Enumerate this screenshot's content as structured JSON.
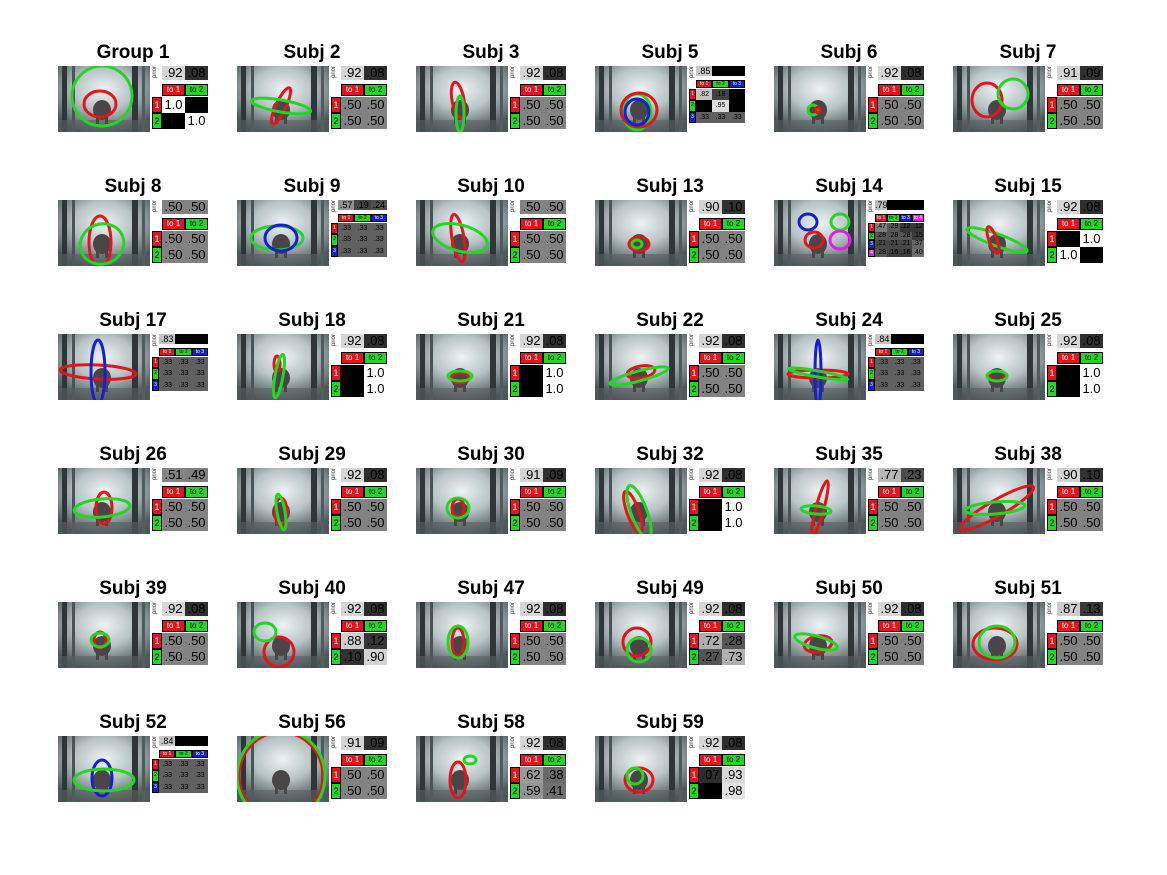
{
  "colors": {
    "red": "#e4141b",
    "green": "#22d722",
    "blue": "#1420d4",
    "magenta": "#e020e0"
  },
  "prior_label": "prior",
  "panels": [
    {
      "title": "Group 1",
      "prior": [
        ".92",
        ".08"
      ],
      "hdr": [
        "to 1",
        "to 2"
      ],
      "rows": [
        [
          "1.0",
          ""
        ],
        [
          "",
          "1.0"
        ]
      ]
    },
    {
      "title": "Subj 2",
      "prior": [
        ".92",
        ".08"
      ],
      "hdr": [
        "to 1",
        "to 2"
      ],
      "rows": [
        [
          ".50",
          ".50"
        ],
        [
          ".50",
          ".50"
        ]
      ]
    },
    {
      "title": "Subj 3",
      "prior": [
        ".92",
        ".08"
      ],
      "hdr": [
        "to 1",
        "to 2"
      ],
      "rows": [
        [
          ".50",
          ".50"
        ],
        [
          ".50",
          ".50"
        ]
      ]
    },
    {
      "title": "Subj 5",
      "prior": [
        ".85",
        "",
        ""
      ],
      "hdr": [
        "to 1",
        "to 2",
        "to 3"
      ],
      "rows": [
        [
          ".82",
          ".18",
          ""
        ],
        [
          "",
          ".95",
          ""
        ],
        [
          ".33",
          ".33",
          ".33"
        ]
      ]
    },
    {
      "title": "Subj 6",
      "prior": [
        ".92",
        ".08"
      ],
      "hdr": [
        "to 1",
        "to 2"
      ],
      "rows": [
        [
          ".50",
          ".50"
        ],
        [
          ".50",
          ".50"
        ]
      ]
    },
    {
      "title": "Subj 7",
      "prior": [
        ".91",
        ".09"
      ],
      "hdr": [
        "to 1",
        "to 2"
      ],
      "rows": [
        [
          ".50",
          ".50"
        ],
        [
          ".50",
          ".50"
        ]
      ]
    },
    {
      "title": "Subj 8",
      "prior": [
        ".50",
        ".50"
      ],
      "hdr": [
        "to 1",
        "to 2"
      ],
      "rows": [
        [
          ".50",
          ".50"
        ],
        [
          ".50",
          ".50"
        ]
      ]
    },
    {
      "title": "Subj 9",
      "prior": [
        ".57",
        ".19",
        ".24"
      ],
      "hdr": [
        "to 1",
        "to 2",
        "to 3"
      ],
      "rows": [
        [
          ".33",
          ".33",
          ".33"
        ],
        [
          ".33",
          ".33",
          ".33"
        ],
        [
          ".33",
          ".33",
          ".33"
        ]
      ]
    },
    {
      "title": "Subj 10",
      "prior": [
        ".50",
        ".50"
      ],
      "hdr": [
        "to 1",
        "to 2"
      ],
      "rows": [
        [
          ".50",
          ".50"
        ],
        [
          ".50",
          ".50"
        ]
      ]
    },
    {
      "title": "Subj 13",
      "prior": [
        ".90",
        ".10"
      ],
      "hdr": [
        "to 1",
        "to 2"
      ],
      "rows": [
        [
          ".50",
          ".50"
        ],
        [
          ".50",
          ".50"
        ]
      ]
    },
    {
      "title": "Subj 14",
      "prior": [
        ".79",
        "",
        "",
        ""
      ],
      "hdr": [
        "to 1",
        "to 2",
        "to 3",
        "to 4"
      ],
      "rows": [
        [
          ".47",
          ".29",
          ".12",
          ".12"
        ],
        [
          ".28",
          ".28",
          ".28",
          ".15"
        ],
        [
          ".21",
          ".21",
          ".21",
          ".37"
        ],
        [
          ".28",
          ".16",
          ".16",
          ".40"
        ]
      ]
    },
    {
      "title": "Subj 15",
      "prior": [
        ".92",
        ".08"
      ],
      "hdr": [
        "to 1",
        "to 2"
      ],
      "rows": [
        [
          "",
          "1.0"
        ],
        [
          "1.0",
          ""
        ]
      ]
    },
    {
      "title": "Subj 17",
      "prior": [
        ".83",
        "",
        ""
      ],
      "hdr": [
        "to 1",
        "to 2",
        "to 3"
      ],
      "rows": [
        [
          ".33",
          ".33",
          ".33"
        ],
        [
          ".33",
          ".33",
          ".33"
        ],
        [
          ".33",
          ".33",
          ".33"
        ]
      ]
    },
    {
      "title": "Subj 18",
      "prior": [
        ".92",
        ".08"
      ],
      "hdr": [
        "to 1",
        "to 2"
      ],
      "rows": [
        [
          "",
          "1.0"
        ],
        [
          "",
          "1.0"
        ]
      ]
    },
    {
      "title": "Subj 21",
      "prior": [
        ".92",
        ".08"
      ],
      "hdr": [
        "to 1",
        "to 2"
      ],
      "rows": [
        [
          "",
          "1.0"
        ],
        [
          "",
          "1.0"
        ]
      ]
    },
    {
      "title": "Subj 22",
      "prior": [
        ".92",
        ".08"
      ],
      "hdr": [
        "to 1",
        "to 2"
      ],
      "rows": [
        [
          ".50",
          ".50"
        ],
        [
          ".50",
          ".50"
        ]
      ]
    },
    {
      "title": "Subj 24",
      "prior": [
        ".84",
        "",
        ""
      ],
      "hdr": [
        "to 1",
        "to 2",
        "to 3"
      ],
      "rows": [
        [
          ".33",
          ".33",
          ".33"
        ],
        [
          ".33",
          ".33",
          ".33"
        ],
        [
          ".33",
          ".33",
          ".33"
        ]
      ]
    },
    {
      "title": "Subj 25",
      "prior": [
        ".92",
        ".08"
      ],
      "hdr": [
        "to 1",
        "to 2"
      ],
      "rows": [
        [
          "",
          "1.0"
        ],
        [
          "",
          "1.0"
        ]
      ]
    },
    {
      "title": "Subj 26",
      "prior": [
        ".51",
        ".49"
      ],
      "hdr": [
        "to 1",
        "to 2"
      ],
      "rows": [
        [
          ".50",
          ".50"
        ],
        [
          ".50",
          ".50"
        ]
      ]
    },
    {
      "title": "Subj 29",
      "prior": [
        ".92",
        ".08"
      ],
      "hdr": [
        "to 1",
        "to 2"
      ],
      "rows": [
        [
          ".50",
          ".50"
        ],
        [
          ".50",
          ".50"
        ]
      ]
    },
    {
      "title": "Subj 30",
      "prior": [
        ".91",
        ".09"
      ],
      "hdr": [
        "to 1",
        "to 2"
      ],
      "rows": [
        [
          ".50",
          ".50"
        ],
        [
          ".50",
          ".50"
        ]
      ]
    },
    {
      "title": "Subj 32",
      "prior": [
        ".92",
        ".08"
      ],
      "hdr": [
        "to 1",
        "to 2"
      ],
      "rows": [
        [
          "",
          "1.0"
        ],
        [
          "",
          "1.0"
        ]
      ]
    },
    {
      "title": "Subj 35",
      "prior": [
        ".77",
        ".23"
      ],
      "hdr": [
        "to 1",
        "to 2"
      ],
      "rows": [
        [
          ".50",
          ".50"
        ],
        [
          ".50",
          ".50"
        ]
      ]
    },
    {
      "title": "Subj 38",
      "prior": [
        ".90",
        ".10"
      ],
      "hdr": [
        "to 1",
        "to 2"
      ],
      "rows": [
        [
          ".50",
          ".50"
        ],
        [
          ".50",
          ".50"
        ]
      ]
    },
    {
      "title": "Subj 39",
      "prior": [
        ".92",
        ".08"
      ],
      "hdr": [
        "to 1",
        "to 2"
      ],
      "rows": [
        [
          ".50",
          ".50"
        ],
        [
          ".50",
          ".50"
        ]
      ]
    },
    {
      "title": "Subj 40",
      "prior": [
        ".92",
        ".08"
      ],
      "hdr": [
        "to 1",
        "to 2"
      ],
      "rows": [
        [
          ".88",
          ".12"
        ],
        [
          ".10",
          ".90"
        ]
      ]
    },
    {
      "title": "Subj 47",
      "prior": [
        ".92",
        ".08"
      ],
      "hdr": [
        "to 1",
        "to 2"
      ],
      "rows": [
        [
          ".50",
          ".50"
        ],
        [
          ".50",
          ".50"
        ]
      ]
    },
    {
      "title": "Subj 49",
      "prior": [
        ".92",
        ".08"
      ],
      "hdr": [
        "to 1",
        "to 2"
      ],
      "rows": [
        [
          ".72",
          ".28"
        ],
        [
          ".27",
          ".73"
        ]
      ]
    },
    {
      "title": "Subj 50",
      "prior": [
        ".92",
        ".08"
      ],
      "hdr": [
        "to 1",
        "to 2"
      ],
      "rows": [
        [
          ".50",
          ".50"
        ],
        [
          ".50",
          ".50"
        ]
      ]
    },
    {
      "title": "Subj 51",
      "prior": [
        ".87",
        ".13"
      ],
      "hdr": [
        "to 1",
        "to 2"
      ],
      "rows": [
        [
          ".50",
          ".50"
        ],
        [
          ".50",
          ".50"
        ]
      ]
    },
    {
      "title": "Subj 52",
      "prior": [
        ".84",
        "",
        ""
      ],
      "hdr": [
        "to 1",
        "to 2",
        "to 3"
      ],
      "rows": [
        [
          ".33",
          ".33",
          ".33"
        ],
        [
          ".33",
          ".33",
          ".33"
        ],
        [
          ".33",
          ".33",
          ".33"
        ]
      ]
    },
    {
      "title": "Subj 56",
      "prior": [
        ".91",
        ".09"
      ],
      "hdr": [
        "to 1",
        "to 2"
      ],
      "rows": [
        [
          ".50",
          ".50"
        ],
        [
          ".50",
          ".50"
        ]
      ]
    },
    {
      "title": "Subj 58",
      "prior": [
        ".92",
        ".08"
      ],
      "hdr": [
        "to 1",
        "to 2"
      ],
      "rows": [
        [
          ".62",
          ".38"
        ],
        [
          ".59",
          ".41"
        ]
      ]
    },
    {
      "title": "Subj 59",
      "prior": [
        ".92",
        ".08"
      ],
      "hdr": [
        "to 1",
        "to 2"
      ],
      "rows": [
        [
          ".07",
          ".93"
        ],
        [
          "",
          ".98"
        ]
      ]
    }
  ]
}
